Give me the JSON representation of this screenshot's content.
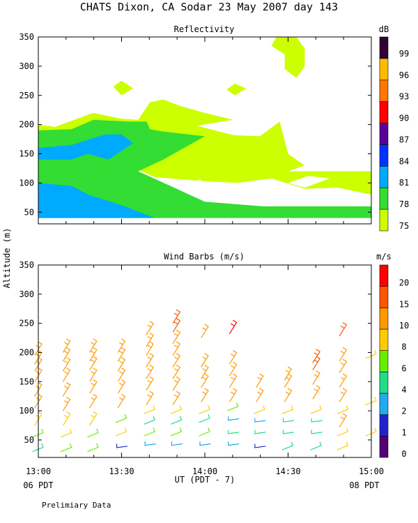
{
  "header": {
    "title": "CHATS Dixon, CA  Sodar  23 May 2007  day 143"
  },
  "shared": {
    "ylabel": "Altitude (m)",
    "xlabel": "UT  (PDT - 7)",
    "time_left_note": "06 PDT",
    "time_right_note": "08 PDT",
    "footnote": "Prelimiary Data",
    "x_ticks": [
      "13:00",
      "13:30",
      "14:00",
      "14:30",
      "15:00"
    ],
    "y_ticks": [
      50,
      100,
      150,
      200,
      250,
      300,
      350
    ]
  },
  "chart_data": [
    {
      "type": "heatmap",
      "title": "Reflectivity",
      "xlim": [
        13.0,
        15.0
      ],
      "ylim": [
        30,
        350
      ],
      "x_ticks": [
        "13:00",
        "13:30",
        "14:00",
        "14:30",
        "15:00"
      ],
      "y_ticks": [
        50,
        100,
        150,
        200,
        250,
        300,
        350
      ],
      "colorbar": {
        "unit": "dB",
        "labels": [
          75,
          78,
          81,
          84,
          87,
          90,
          93,
          96,
          99
        ],
        "colors": [
          "#ccff00",
          "#33dd33",
          "#00aaff",
          "#0033ff",
          "#5a0099",
          "#ff0000",
          "#ff7700",
          "#ffbb00",
          "#330033"
        ]
      },
      "regions": [
        {
          "level": 75,
          "color": "#ccff00",
          "points": [
            [
              13.0,
              200
            ],
            [
              13.1,
              196
            ],
            [
              13.33,
              220
            ],
            [
              13.5,
              210
            ],
            [
              13.6,
              208
            ],
            [
              13.67,
              238
            ],
            [
              13.75,
              243
            ],
            [
              13.85,
              232
            ],
            [
              14.0,
              220
            ],
            [
              14.17,
              208
            ],
            [
              13.95,
              198
            ],
            [
              14.17,
              182
            ],
            [
              14.33,
              180
            ],
            [
              14.45,
              205
            ],
            [
              14.5,
              150
            ],
            [
              14.6,
              130
            ],
            [
              14.5,
              120
            ],
            [
              14.75,
              120
            ],
            [
              14.85,
              120
            ],
            [
              15.0,
              120
            ],
            [
              15.0,
              80
            ],
            [
              14.8,
              92
            ],
            [
              14.6,
              90
            ],
            [
              14.4,
              108
            ],
            [
              14.2,
              100
            ],
            [
              14.0,
              103
            ],
            [
              13.7,
              110
            ],
            [
              13.5,
              135
            ],
            [
              13.5,
              140
            ],
            [
              13.2,
              190
            ],
            [
              13.0,
              190
            ]
          ]
        },
        {
          "level": 75,
          "color": "#ccff00",
          "points": [
            [
              13.45,
              265
            ],
            [
              13.5,
              275
            ],
            [
              13.57,
              262
            ],
            [
              13.5,
              250
            ]
          ]
        },
        {
          "level": 75,
          "color": "#ccff00",
          "points": [
            [
              14.13,
              260
            ],
            [
              14.18,
              270
            ],
            [
              14.25,
              262
            ],
            [
              14.18,
              250
            ]
          ]
        },
        {
          "level": 75,
          "color": "#ccff00",
          "points": [
            [
              14.43,
              350
            ],
            [
              14.55,
              350
            ],
            [
              14.6,
              330
            ],
            [
              14.6,
              300
            ],
            [
              14.55,
              280
            ],
            [
              14.48,
              295
            ],
            [
              14.48,
              320
            ],
            [
              14.4,
              335
            ]
          ]
        },
        {
          "level": 78,
          "color": "#33dd33",
          "points": [
            [
              13.0,
              190
            ],
            [
              13.2,
              192
            ],
            [
              13.33,
              208
            ],
            [
              13.55,
              205
            ],
            [
              13.65,
              205
            ],
            [
              13.67,
              192
            ],
            [
              13.75,
              188
            ],
            [
              14.0,
              180
            ],
            [
              13.75,
              140
            ],
            [
              13.6,
              120
            ],
            [
              14.0,
              68
            ],
            [
              14.35,
              60
            ],
            [
              15.0,
              60
            ],
            [
              15.0,
              40
            ],
            [
              13.0,
              40
            ]
          ]
        },
        {
          "level": 81,
          "color": "#00aaff",
          "points": [
            [
              13.0,
              160
            ],
            [
              13.2,
              165
            ],
            [
              13.4,
              183
            ],
            [
              13.5,
              183
            ],
            [
              13.57,
              168
            ],
            [
              13.5,
              155
            ],
            [
              13.42,
              140
            ],
            [
              13.3,
              150
            ],
            [
              13.2,
              140
            ],
            [
              13.0,
              140
            ]
          ]
        },
        {
          "level": 81,
          "color": "#00aaff",
          "points": [
            [
              13.0,
              100
            ],
            [
              13.2,
              95
            ],
            [
              13.3,
              80
            ],
            [
              13.5,
              62
            ],
            [
              13.7,
              40
            ],
            [
              13.0,
              40
            ]
          ]
        },
        {
          "level": 75,
          "color": "#ffffff",
          "points": [
            [
              13.93,
              100
            ],
            [
              13.97,
              92
            ],
            [
              14.03,
              95
            ],
            [
              13.97,
              106
            ]
          ]
        },
        {
          "level": 75,
          "color": "#ffffff",
          "points": [
            [
              14.6,
              92
            ],
            [
              14.75,
              108
            ],
            [
              14.62,
              112
            ],
            [
              14.5,
              100
            ]
          ]
        }
      ]
    },
    {
      "type": "scatter",
      "title": "Wind Barbs (m/s)",
      "xlim": [
        13.0,
        15.0
      ],
      "ylim": [
        20,
        350
      ],
      "x_ticks": [
        "13:00",
        "13:30",
        "14:00",
        "14:30",
        "15:00"
      ],
      "y_ticks": [
        50,
        100,
        150,
        200,
        250,
        300,
        350
      ],
      "colorbar": {
        "unit": "m/s",
        "labels": [
          0,
          1,
          2,
          4,
          6,
          8,
          10,
          15,
          20
        ],
        "colors": [
          "#550077",
          "#2222cc",
          "#22aaee",
          "#22dd88",
          "#66ee00",
          "#ffcc00",
          "#ff9900",
          "#ff5500",
          "#ff0000"
        ]
      },
      "columns": [
        {
          "x": 13.0,
          "barbs": [
            [
              35,
              5.0
            ],
            [
              60,
              7.0
            ],
            [
              85,
              9.0
            ],
            [
              115,
              10.0
            ],
            [
              135,
              10.0
            ],
            [
              160,
              10.0
            ],
            [
              178,
              10.0
            ],
            [
              190,
              10.0
            ],
            [
              205,
              10.0
            ]
          ]
        },
        {
          "x": 13.17,
          "barbs": [
            [
              35,
              7.0
            ],
            [
              60,
              8.0
            ],
            [
              85,
              9.0
            ],
            [
              110,
              10.0
            ],
            [
              135,
              10.0
            ],
            [
              160,
              10.0
            ],
            [
              178,
              10.0
            ],
            [
              195,
              10.0
            ],
            [
              210,
              10.0
            ]
          ]
        },
        {
          "x": 13.33,
          "barbs": [
            [
              35,
              7.0
            ],
            [
              60,
              6.0
            ],
            [
              85,
              9.0
            ],
            [
              115,
              10.0
            ],
            [
              140,
              10.0
            ],
            [
              160,
              10.0
            ],
            [
              180,
              10.0
            ],
            [
              195,
              10.0
            ],
            [
              210,
              10.0
            ]
          ]
        },
        {
          "x": 13.5,
          "barbs": [
            [
              38,
              1.0
            ],
            [
              62,
              8.0
            ],
            [
              85,
              6.0
            ],
            [
              115,
              10.0
            ],
            [
              140,
              10.0
            ],
            [
              160,
              10.0
            ],
            [
              178,
              10.0
            ],
            [
              195,
              10.0
            ],
            [
              210,
              10.0
            ]
          ]
        },
        {
          "x": 13.67,
          "barbs": [
            [
              42,
              3.0
            ],
            [
              62,
              6.0
            ],
            [
              82,
              5.0
            ],
            [
              100,
              8.0
            ],
            [
              120,
              10.0
            ],
            [
              145,
              10.0
            ],
            [
              165,
              10.0
            ],
            [
              185,
              10.0
            ],
            [
              205,
              10.0
            ],
            [
              220,
              10.0
            ],
            [
              240,
              10.0
            ]
          ]
        },
        {
          "x": 13.83,
          "barbs": [
            [
              42,
              3.0
            ],
            [
              62,
              6.0
            ],
            [
              82,
              5.0
            ],
            [
              100,
              8.0
            ],
            [
              120,
              10.0
            ],
            [
              145,
              10.0
            ],
            [
              165,
              10.0
            ],
            [
              185,
              10.0
            ],
            [
              205,
              10.0
            ],
            [
              225,
              10.0
            ],
            [
              245,
              15.0
            ],
            [
              260,
              15.0
            ]
          ]
        },
        {
          "x": 14.0,
          "barbs": [
            [
              42,
              3.0
            ],
            [
              62,
              6.0
            ],
            [
              85,
              5.0
            ],
            [
              100,
              8.0
            ],
            [
              125,
              10.0
            ],
            [
              150,
              10.0
            ],
            [
              165,
              10.0
            ],
            [
              185,
              10.0
            ],
            [
              235,
              10.0
            ]
          ]
        },
        {
          "x": 14.17,
          "barbs": [
            [
              42,
              3.0
            ],
            [
              62,
              4.0
            ],
            [
              85,
              3.0
            ],
            [
              105,
              7.0
            ],
            [
              125,
              10.0
            ],
            [
              150,
              10.0
            ],
            [
              170,
              10.0
            ],
            [
              190,
              10.0
            ],
            [
              242,
              20.0
            ]
          ]
        },
        {
          "x": 14.33,
          "barbs": [
            [
              38,
              1.0
            ],
            [
              62,
              4.0
            ],
            [
              82,
              3.0
            ],
            [
              100,
              8.0
            ],
            [
              125,
              10.0
            ],
            [
              150,
              10.0
            ]
          ]
        },
        {
          "x": 14.5,
          "barbs": [
            [
              38,
              5.0
            ],
            [
              62,
              4.0
            ],
            [
              82,
              4.0
            ],
            [
              100,
              8.0
            ],
            [
              125,
              10.0
            ],
            [
              150,
              10.0
            ],
            [
              162,
              10.0
            ]
          ]
        },
        {
          "x": 14.67,
          "barbs": [
            [
              38,
              5.0
            ],
            [
              62,
              4.0
            ],
            [
              82,
              4.0
            ],
            [
              100,
              8.0
            ],
            [
              130,
              10.0
            ],
            [
              155,
              10.0
            ],
            [
              180,
              15.0
            ],
            [
              192,
              15.0
            ]
          ]
        },
        {
          "x": 14.83,
          "barbs": [
            [
              38,
              8.0
            ],
            [
              62,
              8.0
            ],
            [
              82,
              10.0
            ],
            [
              100,
              8.0
            ],
            [
              125,
              10.0
            ],
            [
              150,
              10.0
            ],
            [
              175,
              10.0
            ],
            [
              195,
              10.0
            ],
            [
              238,
              15.0
            ]
          ]
        },
        {
          "x": 15.0,
          "barbs": [
            [
              62,
              8.0
            ],
            [
              115,
              8.0
            ],
            [
              195,
              8.0
            ]
          ]
        }
      ]
    }
  ]
}
